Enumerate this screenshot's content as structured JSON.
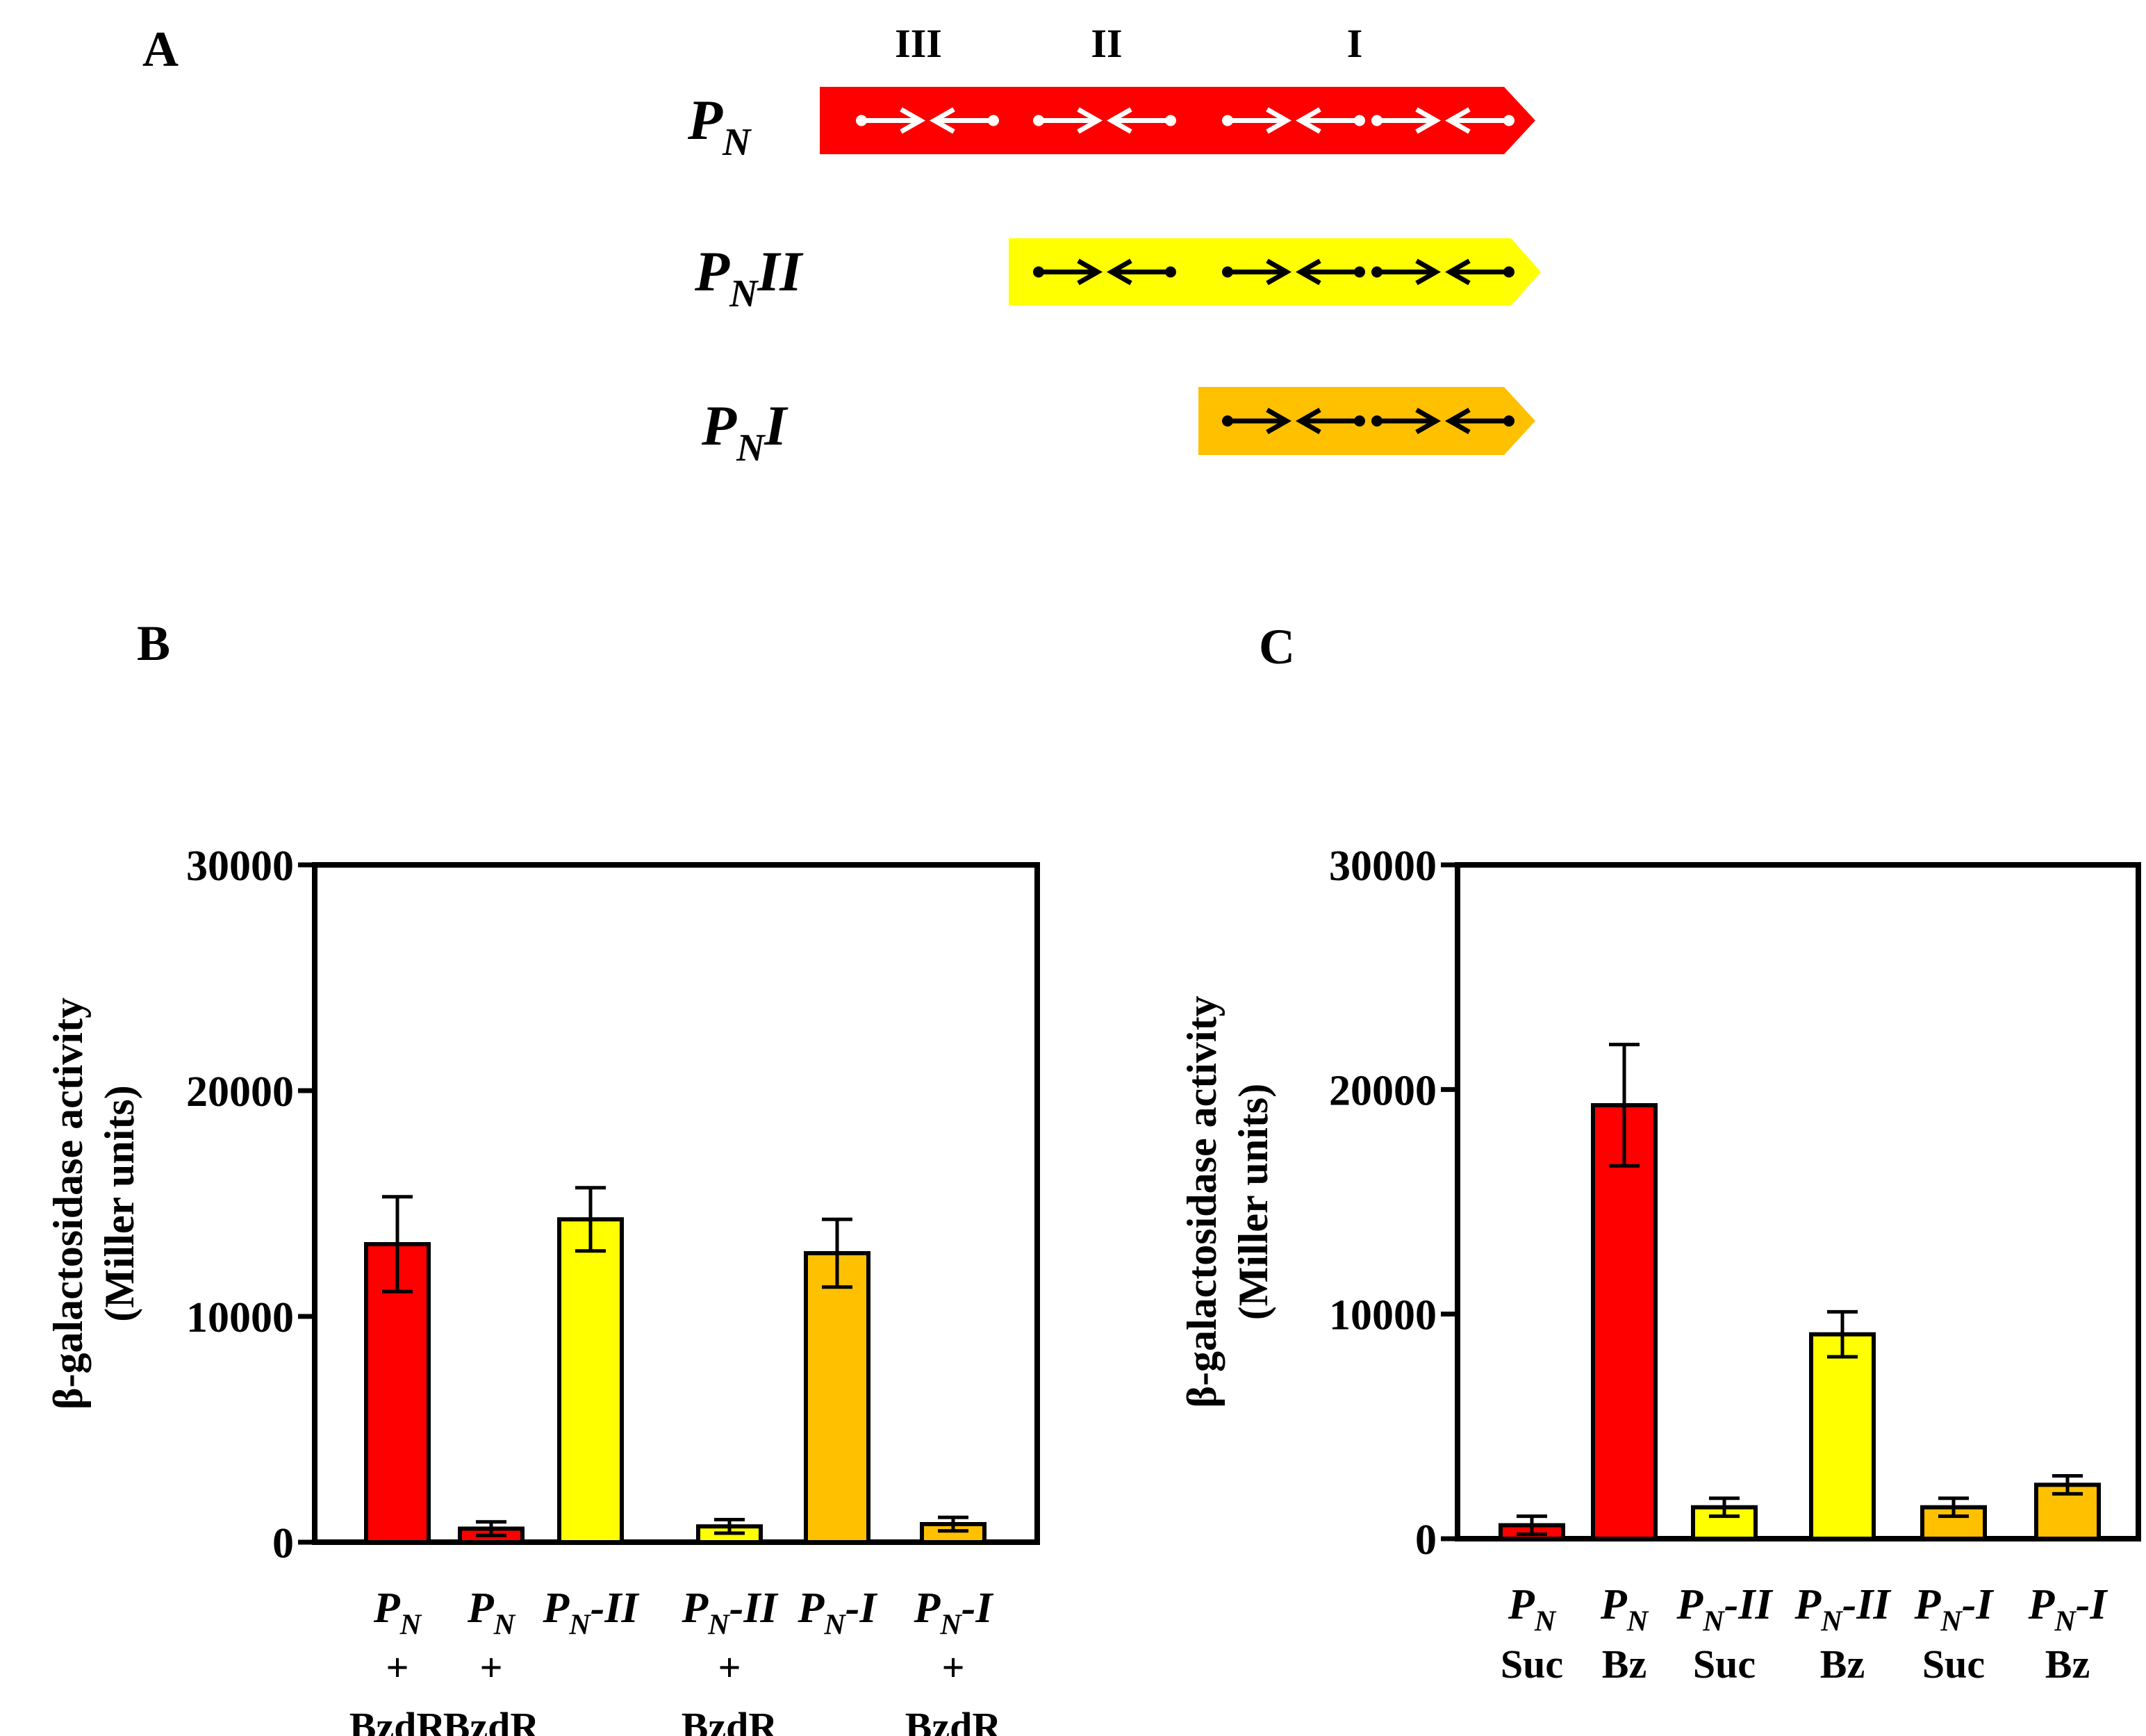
{
  "panel_a": {
    "panel_label": "A",
    "site_labels": [
      "III",
      "II",
      "I"
    ],
    "constructs": [
      {
        "name": "P",
        "sub": "N",
        "suffix": "",
        "color": "#ff0000",
        "sites": [
          "III",
          "II",
          "I",
          "I"
        ],
        "arrow_color": "#ffffff"
      },
      {
        "name": "P",
        "sub": "N",
        "suffix": "II",
        "color": "#ffff00",
        "sites": [
          "II",
          "I",
          "I"
        ],
        "arrow_color": "#000000"
      },
      {
        "name": "P",
        "sub": "N",
        "suffix": "I",
        "color": "#ffc000",
        "sites": [
          "I",
          "I"
        ],
        "arrow_color": "#000000"
      }
    ]
  },
  "chart_data": [
    {
      "panel_label": "B",
      "type": "bar",
      "title": "",
      "xlabel": "",
      "ylabel": [
        "β-galactosidase activity",
        "(Miller units)"
      ],
      "ylim": [
        0,
        30000
      ],
      "yticks": [
        "0",
        "10000",
        "20000",
        "30000"
      ],
      "ytick_values": [
        0,
        10000,
        20000,
        30000
      ],
      "categories": [
        {
          "main": "P",
          "sub": "N",
          "suffix": "",
          "line2": "+",
          "line3": "BzdR"
        },
        {
          "main": "P",
          "sub": "N",
          "suffix": "",
          "line2": "+",
          "line3": "BzdR"
        },
        {
          "main": "P",
          "sub": "N",
          "suffix": "-II",
          "line2": "",
          "line3": ""
        },
        {
          "main": "P",
          "sub": "N",
          "suffix": "-II",
          "line2": "+",
          "line3": "BzdR"
        },
        {
          "main": "P",
          "sub": "N",
          "suffix": "-I",
          "line2": "",
          "line3": ""
        },
        {
          "main": "P",
          "sub": "N",
          "suffix": "-I",
          "line2": "+",
          "line3": "BzdR"
        }
      ],
      "values": [
        13200,
        600,
        14300,
        700,
        12800,
        800
      ],
      "errors": [
        2100,
        300,
        1400,
        300,
        1500,
        300
      ],
      "colors": [
        "#ff0000",
        "#ff0000",
        "#ffff00",
        "#ffff00",
        "#ffc000",
        "#ffc000"
      ]
    },
    {
      "panel_label": "C",
      "type": "bar",
      "title": "",
      "xlabel": "",
      "ylabel": [
        "β-galactosidase activity",
        "(Miller units)"
      ],
      "ylim": [
        0,
        30000
      ],
      "yticks": [
        "0",
        "10000",
        "20000",
        "30000"
      ],
      "ytick_values": [
        0,
        10000,
        20000,
        30000
      ],
      "categories": [
        {
          "main": "P",
          "sub": "N",
          "suffix": "",
          "line2": "Suc",
          "line3": ""
        },
        {
          "main": "P",
          "sub": "N",
          "suffix": "",
          "line2": "Bz",
          "line3": ""
        },
        {
          "main": "P",
          "sub": "N",
          "suffix": "-II",
          "line2": "Suc",
          "line3": ""
        },
        {
          "main": "P",
          "sub": "N",
          "suffix": "-II",
          "line2": "Bz",
          "line3": ""
        },
        {
          "main": "P",
          "sub": "N",
          "suffix": "-I",
          "line2": "Suc",
          "line3": ""
        },
        {
          "main": "P",
          "sub": "N",
          "suffix": "-I",
          "line2": "Bz",
          "line3": ""
        }
      ],
      "values": [
        600,
        19300,
        1400,
        9100,
        1400,
        2400
      ],
      "errors": [
        400,
        2700,
        400,
        1000,
        400,
        400
      ],
      "colors": [
        "#ff0000",
        "#ff0000",
        "#ffff00",
        "#ffff00",
        "#ffc000",
        "#ffc000"
      ]
    }
  ]
}
